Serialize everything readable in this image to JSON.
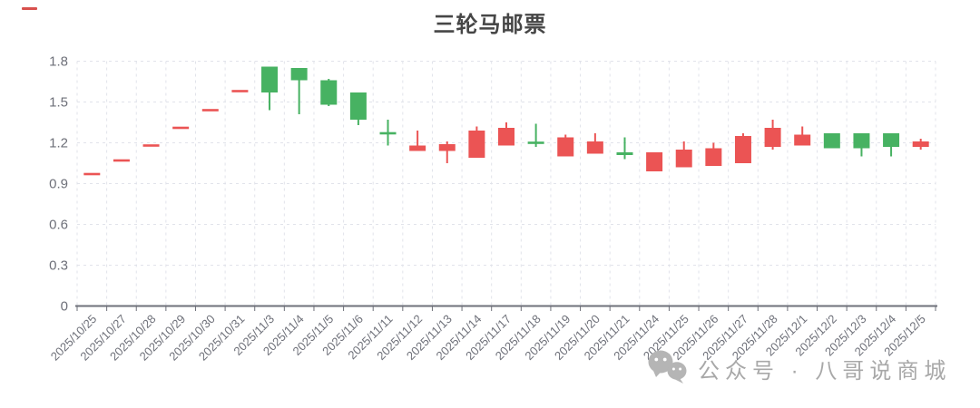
{
  "chart_data": {
    "type": "candlestick",
    "title": "三轮马邮票",
    "xlabel": "",
    "ylabel": "",
    "ylim": [
      0,
      1.8
    ],
    "y_ticks": [
      "0",
      "0.3",
      "0.6",
      "0.9",
      "1.2",
      "1.5",
      "1.8"
    ],
    "x_label_rotation_deg": 45,
    "grid": "dashed",
    "legend_position": "none",
    "colors": {
      "up_red": "#eb5454",
      "down_green": "#47b262",
      "grid_line": "#e1e3ea",
      "axis_line": "#6e7079",
      "tick_label": "#6e7079",
      "title": "#464646"
    },
    "categories": [
      "2025/10/25",
      "2025/10/27",
      "2025/10/28",
      "2025/10/29",
      "2025/10/30",
      "2025/10/31",
      "2025/11/3",
      "2025/11/4",
      "2025/11/5",
      "2025/11/6",
      "2025/11/11",
      "2025/11/12",
      "2025/11/13",
      "2025/11/14",
      "2025/11/17",
      "2025/11/18",
      "2025/11/19",
      "2025/11/20",
      "2025/11/21",
      "2025/11/24",
      "2025/11/25",
      "2025/11/26",
      "2025/11/27",
      "2025/11/28",
      "2025/12/1",
      "2025/12/2",
      "2025/12/3",
      "2025/12/4",
      "2025/12/5"
    ],
    "candles": [
      {
        "date": "2025/10/25",
        "open": 0.97,
        "close": 0.97,
        "low": 0.97,
        "high": 0.97,
        "dir": "up"
      },
      {
        "date": "2025/10/27",
        "open": 1.07,
        "close": 1.07,
        "low": 1.07,
        "high": 1.07,
        "dir": "up"
      },
      {
        "date": "2025/10/28",
        "open": 1.18,
        "close": 1.18,
        "low": 1.18,
        "high": 1.18,
        "dir": "up"
      },
      {
        "date": "2025/10/29",
        "open": 1.31,
        "close": 1.31,
        "low": 1.31,
        "high": 1.31,
        "dir": "up"
      },
      {
        "date": "2025/10/30",
        "open": 1.44,
        "close": 1.44,
        "low": 1.44,
        "high": 1.44,
        "dir": "up"
      },
      {
        "date": "2025/10/31",
        "open": 1.58,
        "close": 1.58,
        "low": 1.58,
        "high": 1.58,
        "dir": "up"
      },
      {
        "date": "2025/11/3",
        "open": 1.76,
        "close": 1.57,
        "low": 1.44,
        "high": 1.76,
        "dir": "down"
      },
      {
        "date": "2025/11/4",
        "open": 1.75,
        "close": 1.66,
        "low": 1.41,
        "high": 1.75,
        "dir": "down"
      },
      {
        "date": "2025/11/5",
        "open": 1.66,
        "close": 1.48,
        "low": 1.47,
        "high": 1.67,
        "dir": "down"
      },
      {
        "date": "2025/11/6",
        "open": 1.57,
        "close": 1.37,
        "low": 1.33,
        "high": 1.57,
        "dir": "down"
      },
      {
        "date": "2025/11/11",
        "open": 1.27,
        "close": 1.27,
        "low": 1.18,
        "high": 1.37,
        "dir": "down"
      },
      {
        "date": "2025/11/12",
        "open": 1.14,
        "close": 1.18,
        "low": 1.14,
        "high": 1.29,
        "dir": "up"
      },
      {
        "date": "2025/11/13",
        "open": 1.14,
        "close": 1.19,
        "low": 1.05,
        "high": 1.21,
        "dir": "up"
      },
      {
        "date": "2025/11/14",
        "open": 1.09,
        "close": 1.29,
        "low": 1.09,
        "high": 1.32,
        "dir": "up"
      },
      {
        "date": "2025/11/17",
        "open": 1.18,
        "close": 1.31,
        "low": 1.18,
        "high": 1.35,
        "dir": "up"
      },
      {
        "date": "2025/11/18",
        "open": 1.2,
        "close": 1.2,
        "low": 1.17,
        "high": 1.34,
        "dir": "down"
      },
      {
        "date": "2025/11/19",
        "open": 1.1,
        "close": 1.24,
        "low": 1.1,
        "high": 1.26,
        "dir": "up"
      },
      {
        "date": "2025/11/20",
        "open": 1.12,
        "close": 1.21,
        "low": 1.12,
        "high": 1.27,
        "dir": "up"
      },
      {
        "date": "2025/11/21",
        "open": 1.13,
        "close": 1.11,
        "low": 1.08,
        "high": 1.24,
        "dir": "down"
      },
      {
        "date": "2025/11/24",
        "open": 0.99,
        "close": 1.13,
        "low": 0.99,
        "high": 1.13,
        "dir": "up"
      },
      {
        "date": "2025/11/25",
        "open": 1.02,
        "close": 1.15,
        "low": 1.02,
        "high": 1.21,
        "dir": "up"
      },
      {
        "date": "2025/11/26",
        "open": 1.03,
        "close": 1.16,
        "low": 1.03,
        "high": 1.2,
        "dir": "up"
      },
      {
        "date": "2025/11/27",
        "open": 1.05,
        "close": 1.25,
        "low": 1.05,
        "high": 1.27,
        "dir": "up"
      },
      {
        "date": "2025/11/28",
        "open": 1.17,
        "close": 1.31,
        "low": 1.15,
        "high": 1.37,
        "dir": "up"
      },
      {
        "date": "2025/12/1",
        "open": 1.18,
        "close": 1.26,
        "low": 1.18,
        "high": 1.32,
        "dir": "up"
      },
      {
        "date": "2025/12/2",
        "open": 1.27,
        "close": 1.16,
        "low": 1.16,
        "high": 1.27,
        "dir": "down"
      },
      {
        "date": "2025/12/3",
        "open": 1.27,
        "close": 1.16,
        "low": 1.1,
        "high": 1.27,
        "dir": "down"
      },
      {
        "date": "2025/12/4",
        "open": 1.27,
        "close": 1.17,
        "low": 1.1,
        "high": 1.27,
        "dir": "down"
      },
      {
        "date": "2025/12/5",
        "open": 1.17,
        "close": 1.21,
        "low": 1.15,
        "high": 1.23,
        "dir": "up"
      }
    ]
  },
  "watermark": {
    "icon": "wechat-icon",
    "text": "公众号 · 八哥说商城",
    "color": "#a8a8a8"
  },
  "decorations": {
    "top_left_mark_color": "#d8504d"
  }
}
